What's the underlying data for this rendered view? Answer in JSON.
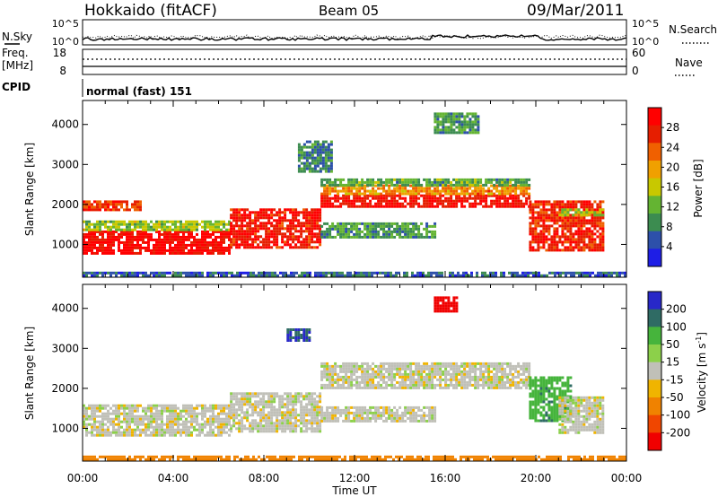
{
  "header": {
    "station": "Hokkaido (fitACF)",
    "beam": "Beam 05",
    "date": "09/Mar/2011"
  },
  "noise_panel": {
    "left_label": "N.Sky",
    "right_label": "N.Search",
    "left_ticks": [
      "10^5",
      "10^0"
    ],
    "right_ticks": [
      "10^5",
      "10^0"
    ]
  },
  "freq_panel": {
    "left_label_1": "Freq.",
    "left_label_2": "[MHz]",
    "right_label": "Nave",
    "left_ticks": [
      "18",
      "8"
    ],
    "right_ticks": [
      "60",
      "0"
    ]
  },
  "cpid": {
    "label": "CPID",
    "mode": "normal (fast) 151"
  },
  "x_axis": {
    "label": "Time UT",
    "ticks": [
      "00:00",
      "04:00",
      "08:00",
      "12:00",
      "16:00",
      "20:00",
      "00:00"
    ]
  },
  "colors": {
    "power": [
      "#1e1ee6",
      "#2d50aa",
      "#3c8c50",
      "#64b432",
      "#c8c800",
      "#f0a000",
      "#f06000",
      "#e61e00",
      "#ff0000"
    ],
    "velocity": [
      "#2828c8",
      "#2f6b64",
      "#46b43c",
      "#8cd04a",
      "#c8c8c0",
      "#f0b400",
      "#f08200",
      "#f04600",
      "#f00000"
    ],
    "ground_scatter": "#c0c0b8"
  },
  "chart_data": [
    {
      "type": "heatmap",
      "name": "power",
      "xlabel": "Time UT",
      "ylabel": "Slant Range [km]",
      "xlim": [
        0,
        24
      ],
      "ylim": [
        180,
        4600
      ],
      "yticks": [
        "1000",
        "2000",
        "3000",
        "4000"
      ],
      "colorbar": {
        "label": "Power [dB]",
        "ticks": [
          "4",
          "8",
          "12",
          "16",
          "20",
          "24",
          "28"
        ],
        "range": [
          0,
          32
        ]
      },
      "regions": [
        {
          "t_start": 0,
          "t_end": 6.5,
          "r_low": 800,
          "r_high": 1350,
          "value": 30
        },
        {
          "t_start": 0,
          "t_end": 6.5,
          "r_low": 1350,
          "r_high": 1600,
          "value": 14
        },
        {
          "t_start": 0,
          "t_end": 2.5,
          "r_low": 1850,
          "r_high": 2100,
          "value": 26
        },
        {
          "t_start": 6.5,
          "t_end": 10.5,
          "r_low": 900,
          "r_high": 1900,
          "value": 28
        },
        {
          "t_start": 10.5,
          "t_end": 19.7,
          "r_low": 1950,
          "r_high": 2250,
          "value": 29
        },
        {
          "t_start": 10.5,
          "t_end": 19.7,
          "r_low": 2250,
          "r_high": 2500,
          "value": 21
        },
        {
          "t_start": 10.5,
          "t_end": 19.7,
          "r_low": 2500,
          "r_high": 2650,
          "value": 11
        },
        {
          "t_start": 10.5,
          "t_end": 15.5,
          "r_low": 1150,
          "r_high": 1550,
          "value": 10
        },
        {
          "t_start": 19.7,
          "t_end": 23.0,
          "r_low": 850,
          "r_high": 2100,
          "value": 27
        },
        {
          "t_start": 21.0,
          "t_end": 23.0,
          "r_low": 1700,
          "r_high": 1900,
          "value": 15
        },
        {
          "t_start": 9.5,
          "t_end": 11.0,
          "r_low": 2800,
          "r_high": 3600,
          "value": 8
        },
        {
          "t_start": 15.5,
          "t_end": 17.5,
          "r_low": 3800,
          "r_high": 4300,
          "value": 10
        },
        {
          "t_start": 0,
          "t_end": 24,
          "r_low": 200,
          "r_high": 320,
          "value": 6
        }
      ]
    },
    {
      "type": "heatmap",
      "name": "velocity",
      "xlabel": "Time UT",
      "ylabel": "Slant Range [km]",
      "xlim": [
        0,
        24
      ],
      "ylim": [
        180,
        4600
      ],
      "yticks": [
        "1000",
        "2000",
        "3000",
        "4000"
      ],
      "colorbar": {
        "label": "Velocity [m s^-1]",
        "ticks": [
          "200",
          "100",
          "50",
          "15",
          "-15",
          "-50",
          "-100",
          "-200"
        ]
      },
      "regions": [
        {
          "t_start": 0,
          "t_end": 6.5,
          "r_low": 800,
          "r_high": 1600,
          "value": 0
        },
        {
          "t_start": 6.5,
          "t_end": 10.5,
          "r_low": 900,
          "r_high": 1900,
          "value": 0
        },
        {
          "t_start": 10.5,
          "t_end": 19.7,
          "r_low": 2000,
          "r_high": 2650,
          "value": 0
        },
        {
          "t_start": 10.5,
          "t_end": 15.5,
          "r_low": 1150,
          "r_high": 1550,
          "value": 0
        },
        {
          "t_start": 19.7,
          "t_end": 21.5,
          "r_low": 1200,
          "r_high": 2300,
          "value": 60
        },
        {
          "t_start": 21.0,
          "t_end": 23.0,
          "r_low": 900,
          "r_high": 1800,
          "value": 0
        },
        {
          "t_start": 9.0,
          "t_end": 10.0,
          "r_low": 3200,
          "r_high": 3500,
          "value": 150
        },
        {
          "t_start": 15.5,
          "t_end": 16.5,
          "r_low": 3900,
          "r_high": 4300,
          "value": -200
        },
        {
          "t_start": 0,
          "t_end": 24,
          "r_low": 200,
          "r_high": 320,
          "value": -80
        }
      ]
    }
  ]
}
